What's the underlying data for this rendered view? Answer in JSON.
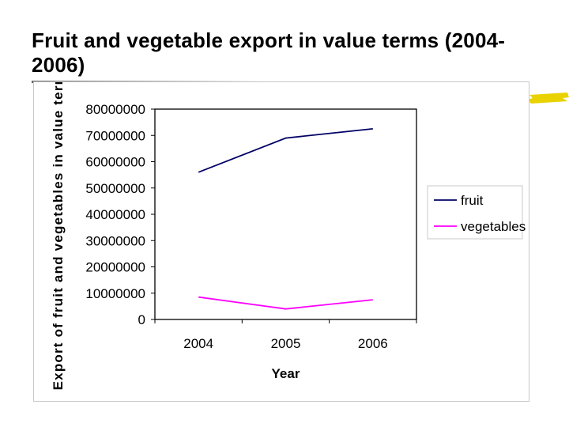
{
  "slide": {
    "title": "Fruit and vegetable export in value terms (2004-2006)",
    "accent_color": "#e9d200"
  },
  "chart_data": {
    "type": "line",
    "title": "",
    "categories": [
      "2004",
      "2005",
      "2006"
    ],
    "series": [
      {
        "name": "fruit",
        "values": [
          56000000,
          69000000,
          72500000
        ],
        "color": "#000066"
      },
      {
        "name": "vegetables",
        "values": [
          8500000,
          4000000,
          7500000
        ],
        "color": "#ff00ff"
      }
    ],
    "xlabel": "Year",
    "ylabel": "Export of fruit and vegetables in value terms (Rs)",
    "ylim": [
      0,
      80000000
    ],
    "yticks": [
      "0",
      "10000000",
      "20000000",
      "30000000",
      "40000000",
      "50000000",
      "60000000",
      "70000000",
      "80000000"
    ],
    "grid": false,
    "legend_position": "right"
  }
}
